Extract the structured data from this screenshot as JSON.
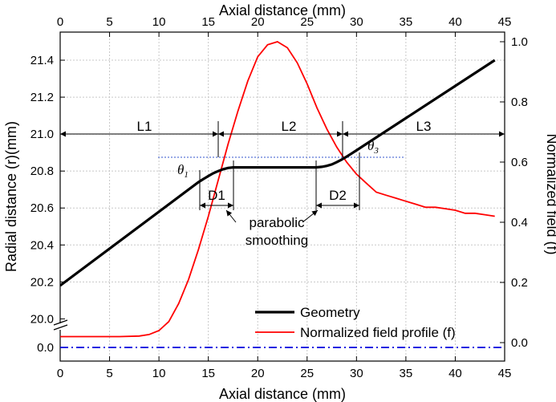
{
  "chart_data": {
    "type": "line",
    "x_axis": {
      "label": "Axial distance (mm)",
      "top_label": "Axial distance (mm)",
      "range": [
        0,
        45
      ],
      "ticks": [
        0,
        5,
        10,
        15,
        20,
        25,
        30,
        35,
        40,
        45
      ]
    },
    "y_left": {
      "label": "Radial distance (r)(mm)",
      "upper_range": [
        19.98,
        21.5
      ],
      "upper_ticks": [
        "20.0",
        "20.2",
        "20.4",
        "20.6",
        "20.8",
        "21.0",
        "21.2",
        "21.4"
      ],
      "lower_ticks": [
        "0.0"
      ],
      "axis_break": true
    },
    "y_right": {
      "label": "Normalized field (f)",
      "range": [
        -0.02,
        1.0
      ],
      "ticks": [
        "0.0",
        "0.2",
        "0.4",
        "0.6",
        "0.8",
        "1.0"
      ]
    },
    "series": [
      {
        "name": "Geometry",
        "axis": "left",
        "color": "#000000",
        "x": [
          0,
          14,
          14.5,
          15,
          15.5,
          16,
          16.5,
          17,
          17.5,
          18,
          25.9,
          26.5,
          27,
          27.5,
          28,
          28.5,
          29,
          29.5,
          30,
          44
        ],
        "y": [
          20.18,
          20.74,
          20.757,
          20.773,
          20.788,
          20.8,
          20.81,
          20.817,
          20.82,
          20.82,
          20.82,
          20.823,
          20.828,
          20.836,
          20.848,
          20.862,
          20.878,
          20.895,
          20.912,
          21.4
        ]
      },
      {
        "name": "Normalized field profile (f)",
        "axis": "right",
        "color": "#ff0000",
        "x": [
          0,
          6,
          8,
          9,
          10,
          11,
          12,
          13,
          14,
          15,
          16,
          17,
          18,
          19,
          20,
          21,
          22,
          23,
          24,
          25,
          26,
          27,
          28,
          29,
          30,
          31,
          32,
          33,
          34,
          35,
          36,
          37,
          38,
          39,
          40,
          41,
          42,
          43,
          44
        ],
        "y": [
          0.02,
          0.02,
          0.022,
          0.027,
          0.04,
          0.07,
          0.13,
          0.21,
          0.31,
          0.42,
          0.54,
          0.66,
          0.77,
          0.87,
          0.95,
          0.99,
          1.0,
          0.98,
          0.93,
          0.86,
          0.78,
          0.71,
          0.65,
          0.6,
          0.56,
          0.53,
          0.5,
          0.49,
          0.48,
          0.47,
          0.46,
          0.45,
          0.45,
          0.445,
          0.44,
          0.43,
          0.43,
          0.425,
          0.42
        ]
      },
      {
        "name": "baseline",
        "axis": "lower",
        "color": "#0000dd",
        "x": [
          0,
          45
        ],
        "y": [
          0,
          0
        ]
      }
    ],
    "legend": [
      {
        "label": "Geometry",
        "color": "#000000"
      },
      {
        "label": "Normalized field profile (f)",
        "color": "#ff0000"
      }
    ],
    "legend_position": "bottom-right",
    "grid": true,
    "annotations": {
      "regions": [
        {
          "label": "L1",
          "x_start": 0,
          "x_end": 16
        },
        {
          "label": "L2",
          "x_start": 16,
          "x_end": 28.5
        },
        {
          "label": "L3",
          "x_start": 28.5,
          "x_end": 45
        }
      ],
      "smoothing_lengths": [
        {
          "label": "D1",
          "x_start": 14,
          "x_end": 17.5
        },
        {
          "label": "D2",
          "x_start": 26,
          "x_end": 30
        }
      ],
      "angles": [
        "θ1",
        "θ3"
      ],
      "note": "parabolic smoothing"
    }
  }
}
